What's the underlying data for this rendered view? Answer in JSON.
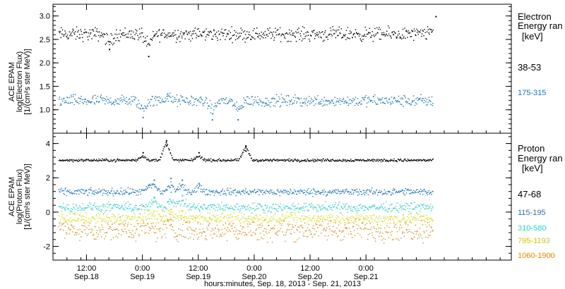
{
  "chart_data": [
    {
      "type": "scatter",
      "ylabel_lines": [
        "ACE EPAM",
        "log(Electron Flux)",
        "[1/(cm²s ster MeV)]"
      ],
      "ylim": [
        0.5,
        3.25
      ],
      "yticks": [
        1.0,
        1.5,
        2.0,
        2.5,
        3.0
      ],
      "ytick_labels": [
        "1.0",
        "1.5",
        "2.0",
        "2.5",
        "3.0"
      ],
      "legend_title_lines": [
        "Electron",
        "Energy ran",
        "[keV]"
      ],
      "series": [
        {
          "name": "38-53",
          "color": "#000000",
          "mean": 2.62,
          "spread": 0.07,
          "events": [
            [
              0.2,
              2.3
            ],
            [
              0.55,
              2.15
            ],
            [
              3.12,
              3.0
            ]
          ]
        },
        {
          "name": "175-315",
          "color": "#1e78c8",
          "mean": 1.2,
          "spread": 0.06,
          "events": [
            [
              0.5,
              0.85
            ],
            [
              0.72,
              1.35
            ],
            [
              1.12,
              0.8
            ],
            [
              1.35,
              0.8
            ],
            [
              1.6,
              1.15
            ]
          ]
        }
      ]
    },
    {
      "type": "scatter",
      "ylabel_lines": [
        "ACE EPAM",
        "log(Proton Flux)",
        "[1/(cm²s ster MeV)]"
      ],
      "ylim": [
        -2.8,
        4.6
      ],
      "yticks": [
        -2,
        0,
        2,
        4
      ],
      "ytick_labels": [
        "-2",
        "0",
        "2",
        "4"
      ],
      "legend_title_lines": [
        "Proton",
        "Energy ran",
        "[keV]"
      ],
      "series": [
        {
          "name": "47-68",
          "color": "#000000",
          "mean": 3.05,
          "spread": 0.04,
          "events": [
            [
              0.5,
              3.5
            ],
            [
              0.71,
              3.9
            ],
            [
              0.71,
              4.2
            ],
            [
              1.0,
              3.5
            ],
            [
              1.42,
              3.6
            ],
            [
              1.42,
              3.9
            ]
          ]
        },
        {
          "name": "115-195",
          "color": "#1e78c8",
          "mean": 1.2,
          "spread": 0.1,
          "events": [
            [
              0.55,
              1.6
            ],
            [
              0.6,
              1.9
            ],
            [
              0.75,
              2.0
            ],
            [
              0.85,
              1.9
            ],
            [
              1.0,
              1.7
            ]
          ]
        },
        {
          "name": "310-580",
          "color": "#30d8d0",
          "mean": 0.3,
          "spread": 0.13,
          "events": [
            [
              0.6,
              0.9
            ],
            [
              0.75,
              1.2
            ],
            [
              0.85,
              1.0
            ]
          ]
        },
        {
          "name": "795-1193",
          "color": "#d4e818",
          "mean": -0.35,
          "spread": 0.16,
          "events": [
            [
              0.6,
              0.1
            ],
            [
              0.75,
              0.2
            ],
            [
              0.85,
              0.1
            ]
          ]
        },
        {
          "name": "1060-1900",
          "color": "#f08c1e",
          "mean": -1.0,
          "spread": 0.32,
          "events": [
            [
              0.75,
              -0.4
            ]
          ]
        }
      ]
    }
  ],
  "time_axis": {
    "xlim": [
      -0.3,
      3.8
    ],
    "data_range": [
      -0.25,
      3.1
    ],
    "ticks": [
      {
        "x": 0.0,
        "time": "12:00",
        "date": "Sep.18"
      },
      {
        "x": 0.5,
        "time": "0:00",
        "date": "Sep.19"
      },
      {
        "x": 1.0,
        "time": "12:00",
        "date": "Sep.19"
      },
      {
        "x": 1.5,
        "time": "0:00",
        "date": "Sep.20"
      },
      {
        "x": 2.0,
        "time": "12:00",
        "date": "Sep.20"
      },
      {
        "x": 2.5,
        "time": "0:00",
        "date": "Sep.21"
      }
    ],
    "minor_step": 0.125,
    "xlabel": "hours:minutes, Sep. 18, 2013 - Sep. 21, 2013"
  }
}
